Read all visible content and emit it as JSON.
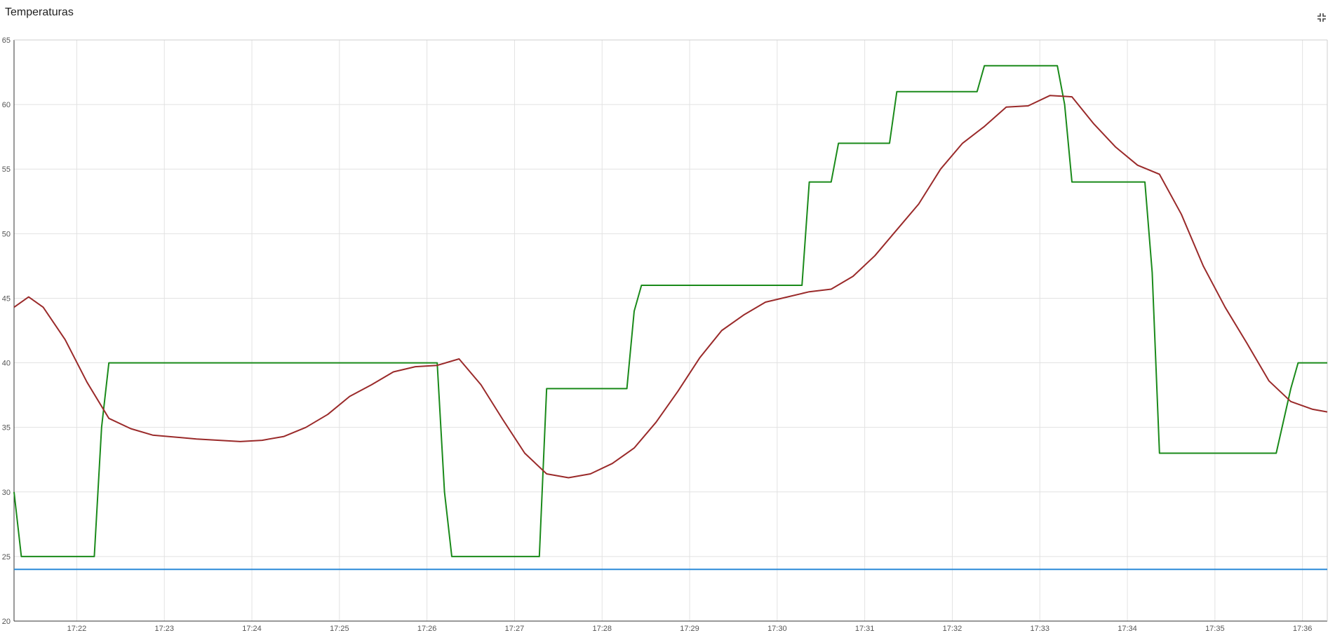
{
  "panel": {
    "title": "Temperaturas",
    "collapse_icon": "collapse-icon"
  },
  "chart_data": {
    "type": "line",
    "title": "Temperaturas",
    "xlabel": "",
    "ylabel": "",
    "ylim": [
      20,
      65
    ],
    "xlim": [
      "17:21:17",
      "17:36:17"
    ],
    "grid": true,
    "legend": "none",
    "y_ticks": [
      "20",
      "25",
      "30",
      "35",
      "40",
      "45",
      "50",
      "55",
      "60",
      "65"
    ],
    "x_ticks": [
      "17:22",
      "17:23",
      "17:24",
      "17:25",
      "17:26",
      "17:27",
      "17:28",
      "17:29",
      "17:30",
      "17:31",
      "17:32",
      "17:33",
      "17:34",
      "17:35",
      "17:36"
    ],
    "series": [
      {
        "color": "#1a8a1a",
        "points": [
          [
            "17:21:17",
            30
          ],
          [
            "17:21:22",
            25
          ],
          [
            "17:22:12",
            25
          ],
          [
            "17:22:17",
            35
          ],
          [
            "17:22:22",
            40
          ],
          [
            "17:26:07",
            40
          ],
          [
            "17:26:12",
            30
          ],
          [
            "17:26:17",
            25
          ],
          [
            "17:27:17",
            25
          ],
          [
            "17:27:22",
            38
          ],
          [
            "17:28:17",
            38
          ],
          [
            "17:28:22",
            44
          ],
          [
            "17:28:27",
            46
          ],
          [
            "17:30:17",
            46
          ],
          [
            "17:30:22",
            54
          ],
          [
            "17:30:37",
            54
          ],
          [
            "17:30:42",
            57
          ],
          [
            "17:31:17",
            57
          ],
          [
            "17:31:22",
            61
          ],
          [
            "17:32:17",
            61
          ],
          [
            "17:32:22",
            63
          ],
          [
            "17:33:12",
            63
          ],
          [
            "17:33:17",
            60
          ],
          [
            "17:33:22",
            54
          ],
          [
            "17:34:12",
            54
          ],
          [
            "17:34:17",
            47
          ],
          [
            "17:34:22",
            33
          ],
          [
            "17:35:42",
            33
          ],
          [
            "17:35:52",
            38
          ],
          [
            "17:35:57",
            40
          ],
          [
            "17:36:17",
            40
          ]
        ]
      },
      {
        "color": "#9a2a2a",
        "points": [
          [
            "17:21:17",
            44.3
          ],
          [
            "17:21:27",
            45.1
          ],
          [
            "17:21:37",
            44.3
          ],
          [
            "17:21:52",
            41.8
          ],
          [
            "17:22:07",
            38.5
          ],
          [
            "17:22:22",
            35.7
          ],
          [
            "17:22:37",
            34.9
          ],
          [
            "17:22:52",
            34.4
          ],
          [
            "17:23:22",
            34.1
          ],
          [
            "17:23:52",
            33.9
          ],
          [
            "17:24:07",
            34.0
          ],
          [
            "17:24:22",
            34.3
          ],
          [
            "17:24:37",
            35.0
          ],
          [
            "17:24:52",
            36.0
          ],
          [
            "17:25:07",
            37.4
          ],
          [
            "17:25:22",
            38.3
          ],
          [
            "17:25:37",
            39.3
          ],
          [
            "17:25:52",
            39.7
          ],
          [
            "17:26:07",
            39.8
          ],
          [
            "17:26:22",
            40.3
          ],
          [
            "17:26:37",
            38.3
          ],
          [
            "17:26:52",
            35.6
          ],
          [
            "17:27:07",
            33.0
          ],
          [
            "17:27:22",
            31.4
          ],
          [
            "17:27:37",
            31.1
          ],
          [
            "17:27:52",
            31.4
          ],
          [
            "17:28:07",
            32.2
          ],
          [
            "17:28:22",
            33.4
          ],
          [
            "17:28:37",
            35.4
          ],
          [
            "17:28:52",
            37.8
          ],
          [
            "17:29:07",
            40.4
          ],
          [
            "17:29:22",
            42.5
          ],
          [
            "17:29:37",
            43.7
          ],
          [
            "17:29:52",
            44.7
          ],
          [
            "17:30:07",
            45.1
          ],
          [
            "17:30:22",
            45.5
          ],
          [
            "17:30:37",
            45.7
          ],
          [
            "17:30:52",
            46.7
          ],
          [
            "17:31:07",
            48.3
          ],
          [
            "17:31:22",
            50.3
          ],
          [
            "17:31:37",
            52.3
          ],
          [
            "17:31:52",
            55.0
          ],
          [
            "17:32:07",
            57.0
          ],
          [
            "17:32:22",
            58.3
          ],
          [
            "17:32:37",
            59.8
          ],
          [
            "17:32:52",
            59.9
          ],
          [
            "17:33:07",
            60.7
          ],
          [
            "17:33:22",
            60.6
          ],
          [
            "17:33:37",
            58.5
          ],
          [
            "17:33:52",
            56.7
          ],
          [
            "17:34:07",
            55.3
          ],
          [
            "17:34:22",
            54.6
          ],
          [
            "17:34:37",
            51.5
          ],
          [
            "17:34:52",
            47.5
          ],
          [
            "17:35:07",
            44.3
          ],
          [
            "17:35:22",
            41.5
          ],
          [
            "17:35:37",
            38.6
          ],
          [
            "17:35:52",
            37.0
          ],
          [
            "17:36:07",
            36.4
          ],
          [
            "17:36:17",
            36.2
          ]
        ]
      },
      {
        "color": "#2a8ad8",
        "points": [
          [
            "17:21:17",
            24
          ],
          [
            "17:36:17",
            24
          ]
        ]
      }
    ]
  }
}
